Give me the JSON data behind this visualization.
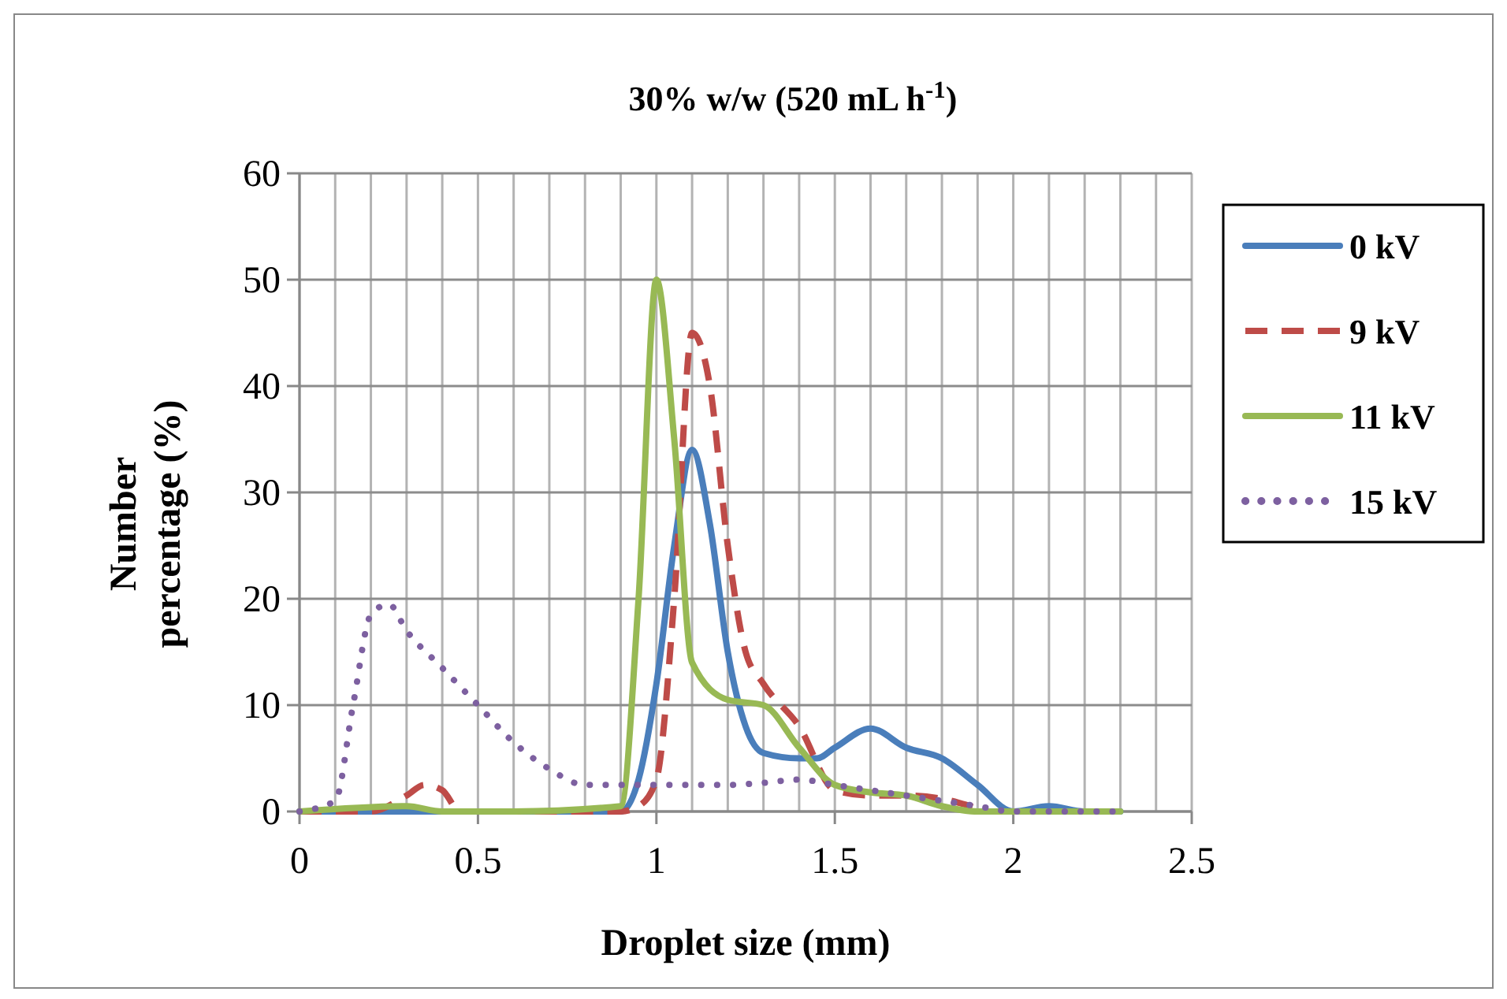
{
  "chart_data": {
    "type": "line",
    "title": "30% w/w (520 mL h$^{-1}$)",
    "xlabel": "Droplet size (mm)",
    "ylabel": "Number percentage (%)",
    "xlim": [
      0,
      2.5
    ],
    "xticks": [
      0,
      0.5,
      1,
      1.5,
      2,
      2.5
    ],
    "ylim": [
      0,
      60
    ],
    "yticks": [
      0,
      10,
      20,
      30,
      40,
      50,
      60
    ],
    "grid": true,
    "legend": "right",
    "marker": "none",
    "series": [
      {
        "name": "0 kV",
        "color": "#4a7ebb",
        "line_style": "solid",
        "x": [
          0,
          0.3,
          0.6,
          0.9,
          0.95,
          1.0,
          1.05,
          1.1,
          1.15,
          1.2,
          1.25,
          1.3,
          1.4,
          1.45,
          1.5,
          1.6,
          1.7,
          1.8,
          1.9,
          2.0,
          2.1,
          2.2,
          2.3
        ],
        "values": [
          0,
          0,
          0,
          0,
          3,
          12,
          25,
          34,
          27,
          15,
          8,
          5.5,
          5,
          5,
          6,
          7.8,
          6,
          5,
          2.5,
          0,
          0.5,
          0,
          0
        ]
      },
      {
        "name": "9 kV",
        "color": "#be4b48",
        "line_style": "dashed",
        "x": [
          0,
          0.2,
          0.3,
          0.35,
          0.4,
          0.45,
          0.6,
          0.9,
          0.95,
          1.0,
          1.05,
          1.1,
          1.15,
          1.2,
          1.25,
          1.3,
          1.4,
          1.5,
          1.6,
          1.7,
          1.8,
          1.9
        ],
        "values": [
          0,
          0,
          1.5,
          2.5,
          2,
          0,
          0,
          0,
          0.5,
          3,
          20,
          45,
          40,
          25,
          15,
          12,
          8,
          2,
          1.5,
          1.5,
          1.2,
          0.3
        ]
      },
      {
        "name": "11 kV",
        "color": "#98b954",
        "line_style": "solid",
        "x": [
          0,
          0.3,
          0.4,
          0.6,
          0.9,
          0.95,
          1.0,
          1.05,
          1.1,
          1.2,
          1.3,
          1.4,
          1.5,
          1.6,
          1.7,
          1.8,
          1.9,
          2.0,
          2.1,
          2.2,
          2.3
        ],
        "values": [
          0,
          0.5,
          0,
          0,
          0.5,
          20,
          50,
          35,
          14,
          10.5,
          10,
          6,
          2.5,
          1.8,
          1.5,
          0.5,
          0,
          0,
          0,
          0,
          0
        ]
      },
      {
        "name": "15 kV",
        "color": "#7d60a0",
        "line_style": "dotted",
        "x": [
          0,
          0.1,
          0.15,
          0.2,
          0.25,
          0.3,
          0.4,
          0.5,
          0.6,
          0.7,
          0.8,
          0.9,
          1.0,
          1.1,
          1.2,
          1.3,
          1.4,
          1.5,
          1.6,
          1.7,
          1.8,
          1.9,
          2.0,
          2.1,
          2.2,
          2.3
        ],
        "values": [
          0,
          1,
          10,
          18.5,
          19.5,
          17,
          13.5,
          10,
          6.5,
          4,
          2.5,
          2.5,
          2.5,
          2.5,
          2.5,
          2.7,
          3,
          2.5,
          2,
          1.5,
          1,
          0.5,
          0,
          0,
          0,
          0
        ]
      }
    ]
  }
}
